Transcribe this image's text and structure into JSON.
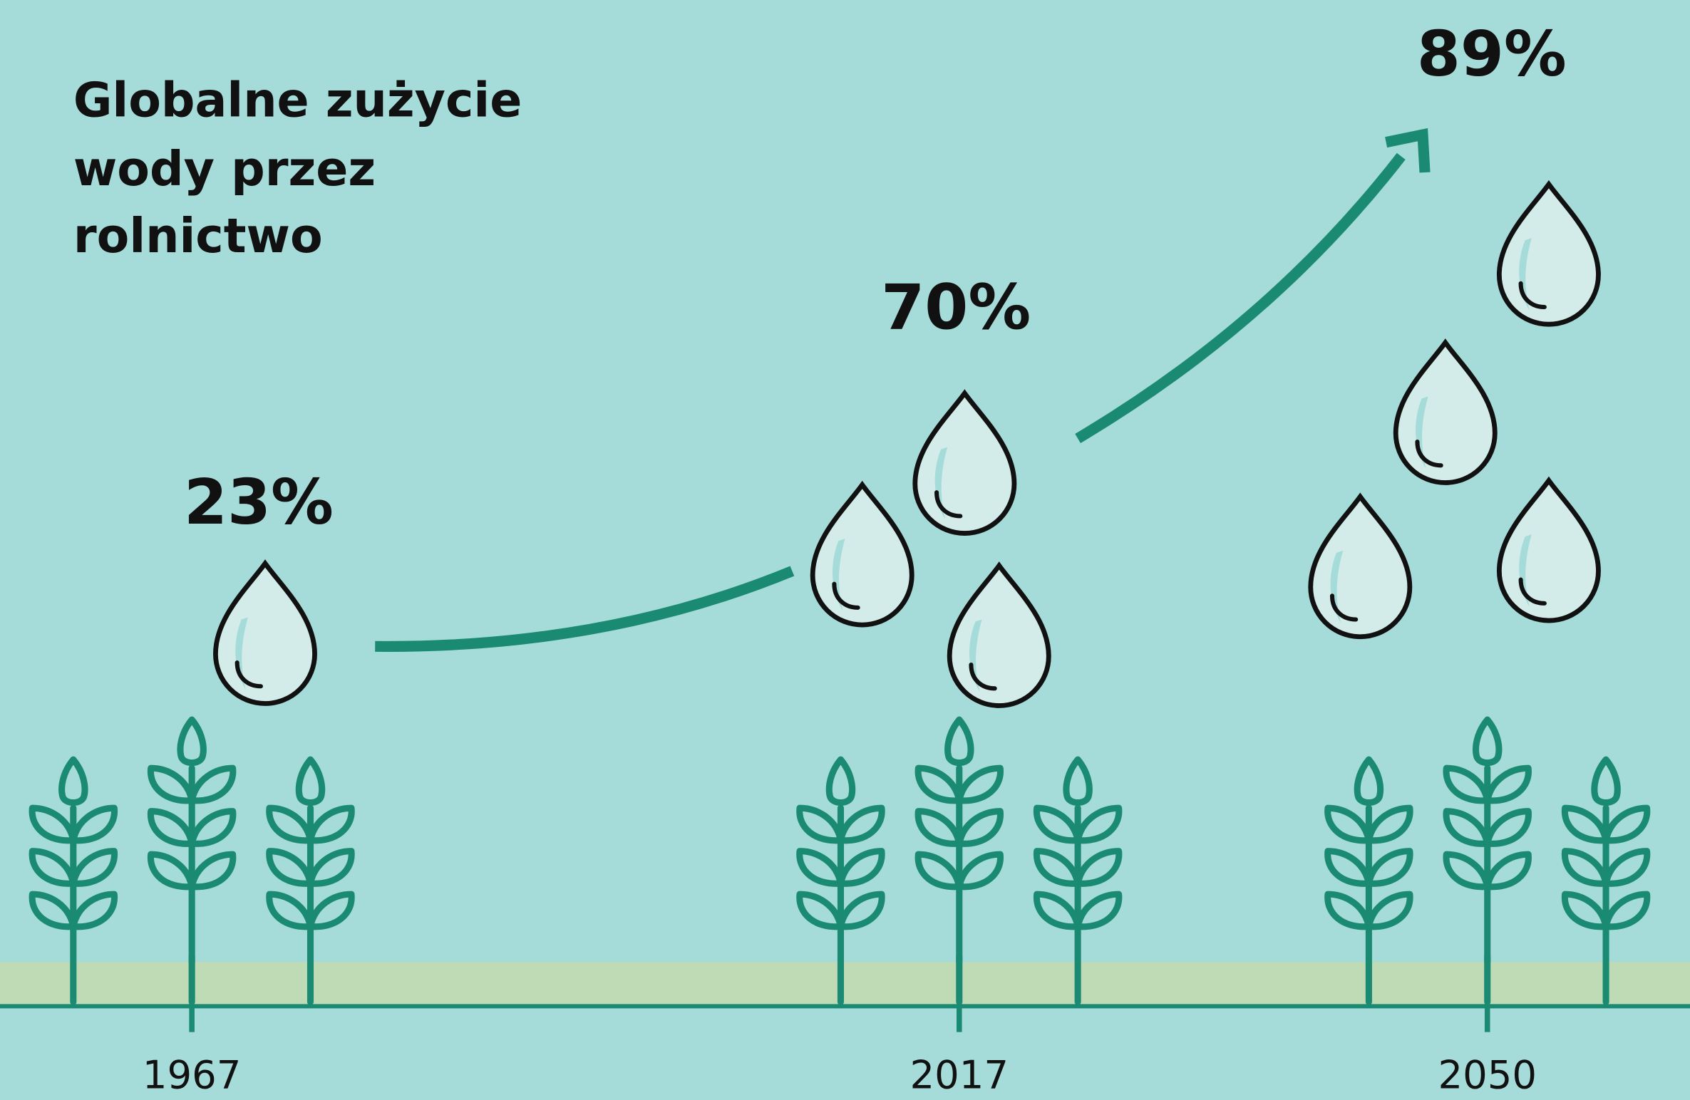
{
  "header": {
    "title_lines": [
      "Globalne zużycie",
      "wody przez",
      "rolnictwo"
    ]
  },
  "milestones": [
    {
      "year": "1967",
      "label": "23%"
    },
    {
      "year": "2017",
      "label": "70%"
    },
    {
      "year": "2050",
      "label": "89%"
    }
  ]
}
